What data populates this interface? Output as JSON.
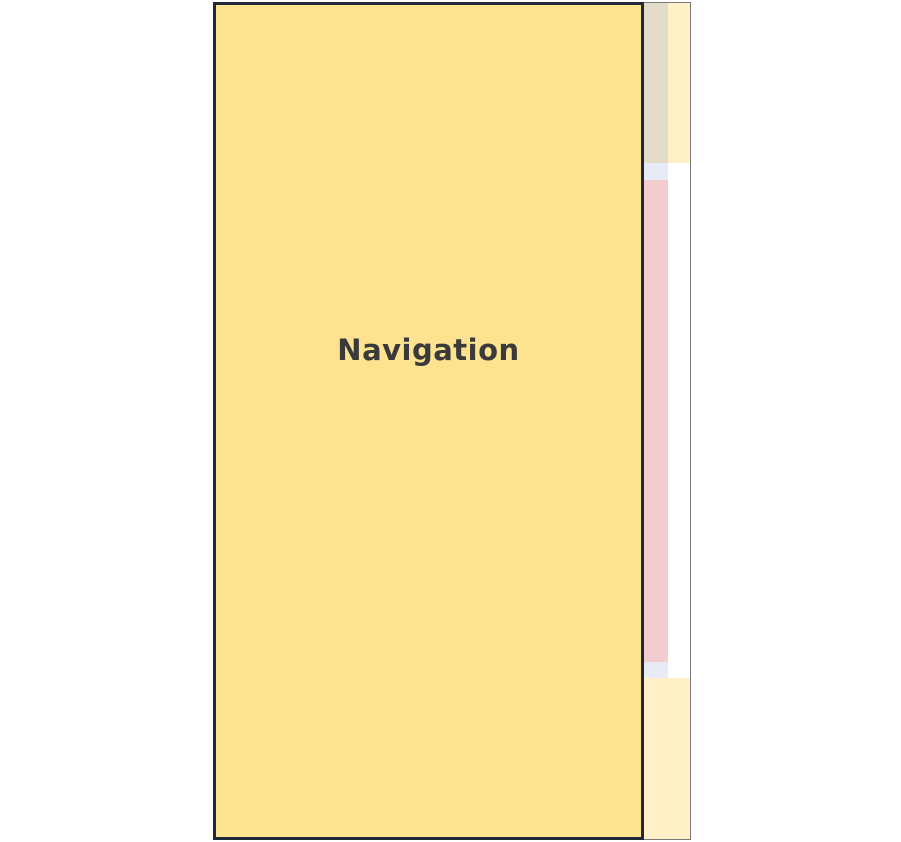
{
  "navigation": {
    "label": "Navigation"
  },
  "colors": {
    "navigation_fill": "#fde290",
    "navigation_border": "#1f2838",
    "strip_fill": "#fff0c8",
    "gutter_fill": "#e2dcc8",
    "gap_fill": "#e6ebf6",
    "scroll_thumb": "#f2ccd0",
    "label_color": "#3a3a3a"
  }
}
